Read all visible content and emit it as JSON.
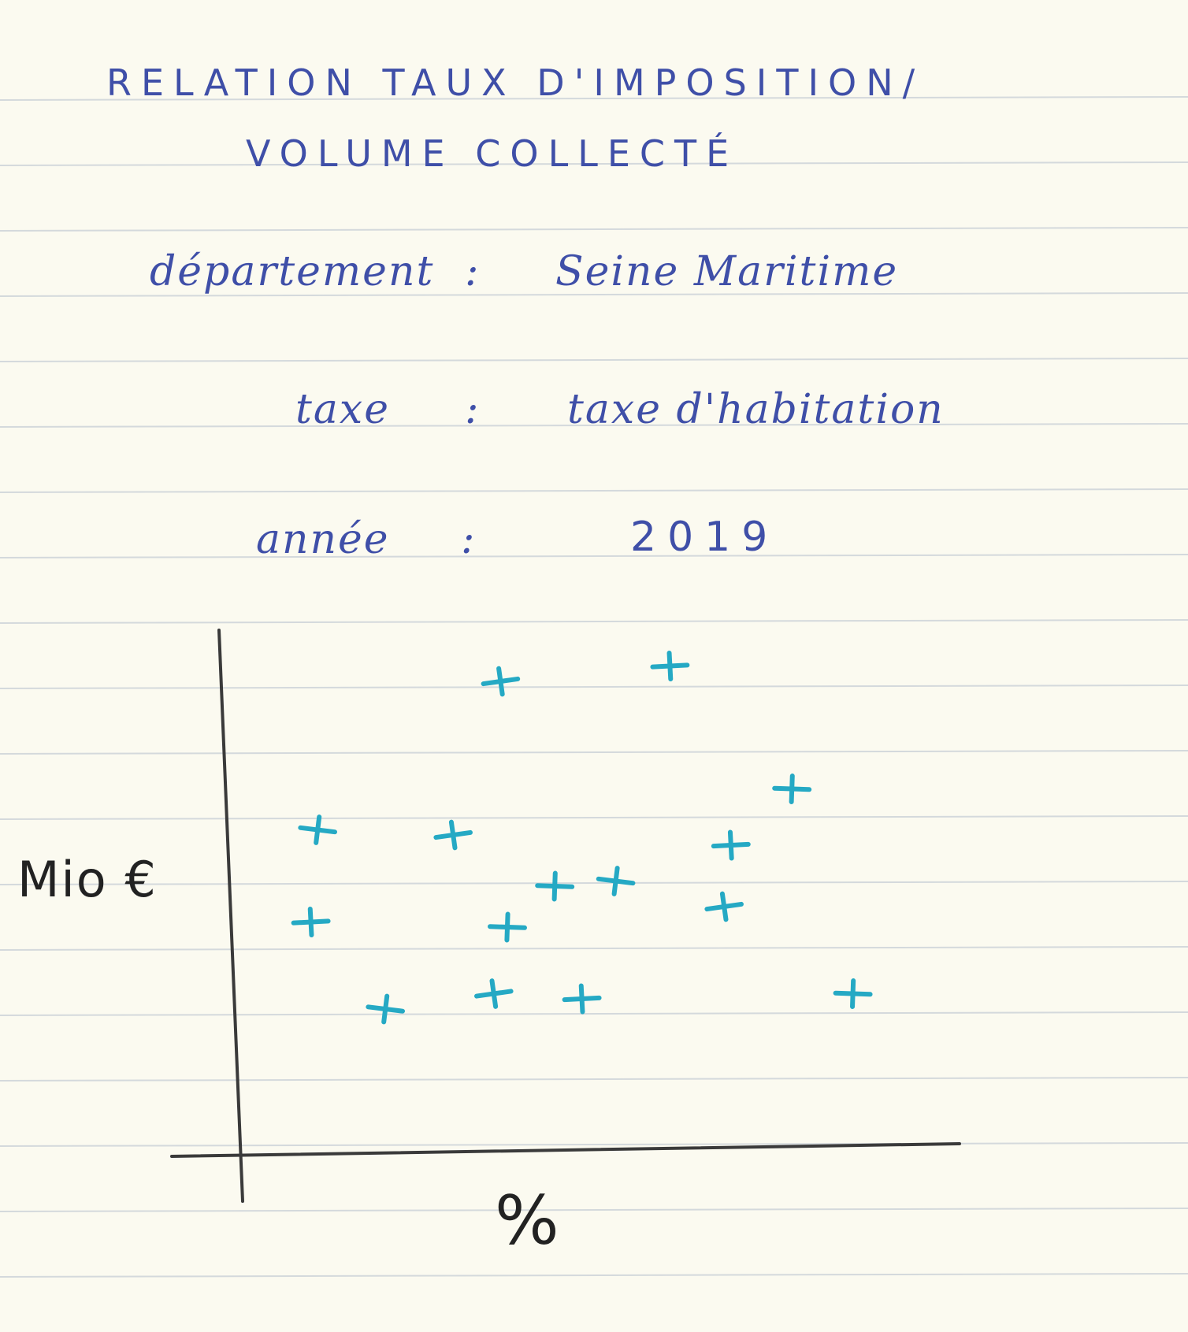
{
  "title": {
    "line1": "RELATION TAUX D'IMPOSITION/",
    "line2": "VOLUME COLLECTÉ"
  },
  "info": [
    {
      "label": "département",
      "value": "Seine Maritime"
    },
    {
      "label": "taxe",
      "value": "taxe d'habitation"
    },
    {
      "label": "année",
      "value": "2019"
    }
  ],
  "colors": {
    "ink_blue": "#3f4fa8",
    "marker": "#25a9c4",
    "axis": "#3a3a3a",
    "paper": "#fbfaf0",
    "rule": "#d4d9dc"
  },
  "chart_data": {
    "type": "scatter",
    "title": "",
    "xlabel": "%",
    "ylabel": "Mio €",
    "xlim": [
      0,
      10
    ],
    "ylim": [
      0,
      10
    ],
    "grid": false,
    "marker": "+",
    "points": [
      {
        "x": 3.9,
        "y": 9.0
      },
      {
        "x": 6.4,
        "y": 9.3
      },
      {
        "x": 8.2,
        "y": 6.9
      },
      {
        "x": 1.2,
        "y": 6.1
      },
      {
        "x": 3.2,
        "y": 6.0
      },
      {
        "x": 7.3,
        "y": 5.8
      },
      {
        "x": 4.7,
        "y": 5.0
      },
      {
        "x": 5.6,
        "y": 5.1
      },
      {
        "x": 7.2,
        "y": 4.6
      },
      {
        "x": 1.1,
        "y": 4.3
      },
      {
        "x": 4.0,
        "y": 4.2
      },
      {
        "x": 2.2,
        "y": 2.6
      },
      {
        "x": 3.8,
        "y": 2.9
      },
      {
        "x": 5.1,
        "y": 2.8
      },
      {
        "x": 9.1,
        "y": 2.9
      }
    ]
  }
}
